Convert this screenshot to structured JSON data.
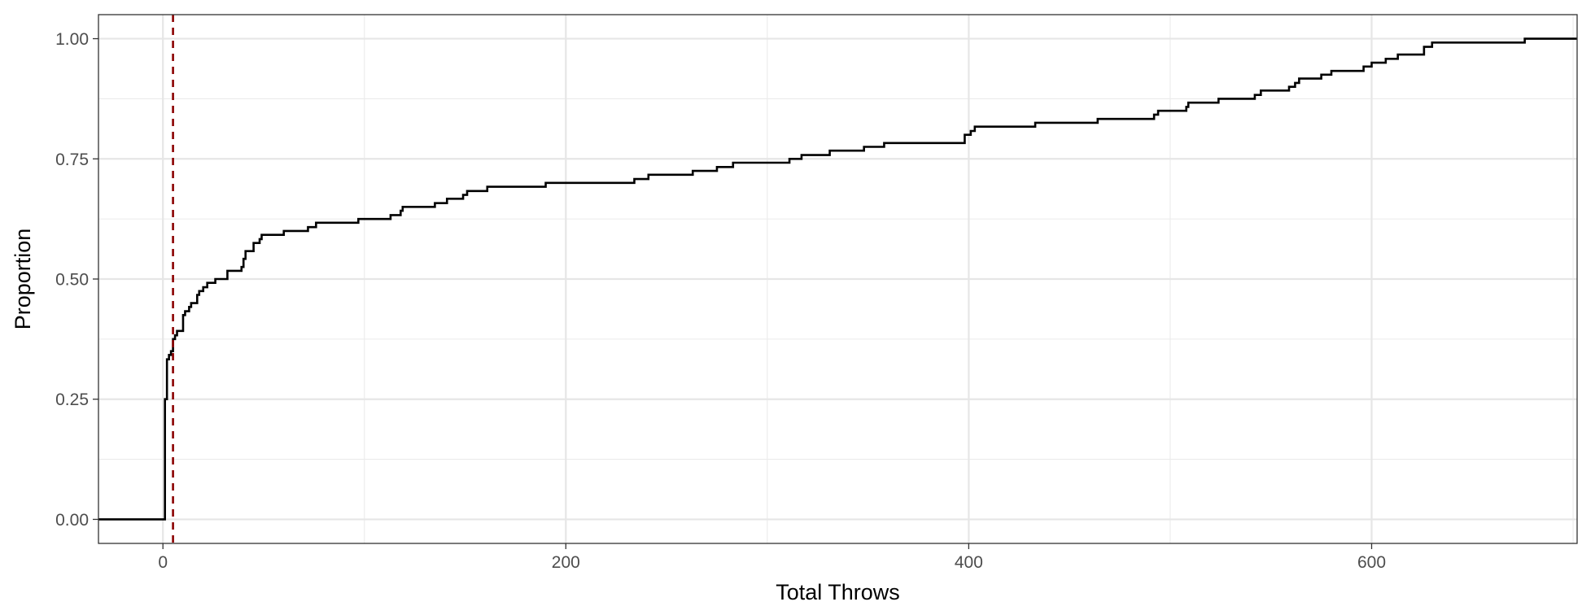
{
  "chart_data": {
    "type": "line",
    "subtype": "ecdf-step",
    "title": "",
    "xlabel": "Total Throws",
    "ylabel": "Proportion",
    "xlim": [
      -32,
      702
    ],
    "ylim": [
      -0.05,
      1.05
    ],
    "x_ticks": [
      0,
      200,
      400,
      600
    ],
    "x_tick_labels": [
      "0",
      "200",
      "400",
      "600"
    ],
    "y_ticks": [
      0,
      0.25,
      0.5,
      0.75,
      1.0
    ],
    "y_tick_labels": [
      "0.00",
      "0.25",
      "0.50",
      "0.75",
      "1.00"
    ],
    "grid": true,
    "legend": "none",
    "reference_line": {
      "x": 5,
      "style": "dashed",
      "color": "#8b0000"
    },
    "series": [
      {
        "color": "#000000",
        "points": [
          [
            -32,
            0.0
          ],
          [
            1,
            0.0
          ],
          [
            1,
            0.25
          ],
          [
            2,
            0.25
          ],
          [
            2,
            0.333
          ],
          [
            3,
            0.333
          ],
          [
            3,
            0.342
          ],
          [
            4,
            0.342
          ],
          [
            4,
            0.35
          ],
          [
            5,
            0.35
          ],
          [
            5,
            0.375
          ],
          [
            6,
            0.375
          ],
          [
            6,
            0.383
          ],
          [
            7,
            0.383
          ],
          [
            7,
            0.392
          ],
          [
            10,
            0.392
          ],
          [
            10,
            0.425
          ],
          [
            11,
            0.425
          ],
          [
            11,
            0.433
          ],
          [
            13,
            0.433
          ],
          [
            13,
            0.442
          ],
          [
            14,
            0.442
          ],
          [
            14,
            0.45
          ],
          [
            17,
            0.45
          ],
          [
            17,
            0.467
          ],
          [
            18,
            0.467
          ],
          [
            18,
            0.475
          ],
          [
            20,
            0.475
          ],
          [
            20,
            0.483
          ],
          [
            22,
            0.483
          ],
          [
            22,
            0.492
          ],
          [
            26,
            0.492
          ],
          [
            26,
            0.5
          ],
          [
            32,
            0.5
          ],
          [
            32,
            0.517
          ],
          [
            39,
            0.517
          ],
          [
            39,
            0.525
          ],
          [
            40,
            0.525
          ],
          [
            40,
            0.542
          ],
          [
            41,
            0.542
          ],
          [
            41,
            0.558
          ],
          [
            45,
            0.558
          ],
          [
            45,
            0.575
          ],
          [
            48,
            0.575
          ],
          [
            48,
            0.583
          ],
          [
            49,
            0.583
          ],
          [
            49,
            0.592
          ],
          [
            60,
            0.592
          ],
          [
            60,
            0.6
          ],
          [
            72,
            0.6
          ],
          [
            72,
            0.608
          ],
          [
            76,
            0.608
          ],
          [
            76,
            0.617
          ],
          [
            97,
            0.617
          ],
          [
            97,
            0.625
          ],
          [
            113,
            0.625
          ],
          [
            113,
            0.633
          ],
          [
            118,
            0.633
          ],
          [
            118,
            0.642
          ],
          [
            119,
            0.642
          ],
          [
            119,
            0.65
          ],
          [
            135,
            0.65
          ],
          [
            135,
            0.658
          ],
          [
            141,
            0.658
          ],
          [
            141,
            0.667
          ],
          [
            149,
            0.667
          ],
          [
            149,
            0.675
          ],
          [
            151,
            0.675
          ],
          [
            151,
            0.683
          ],
          [
            161,
            0.683
          ],
          [
            161,
            0.692
          ],
          [
            190,
            0.692
          ],
          [
            190,
            0.7
          ],
          [
            234,
            0.7
          ],
          [
            234,
            0.708
          ],
          [
            241,
            0.708
          ],
          [
            241,
            0.717
          ],
          [
            263,
            0.717
          ],
          [
            263,
            0.725
          ],
          [
            275,
            0.725
          ],
          [
            275,
            0.733
          ],
          [
            283,
            0.733
          ],
          [
            283,
            0.742
          ],
          [
            311,
            0.742
          ],
          [
            311,
            0.75
          ],
          [
            317,
            0.75
          ],
          [
            317,
            0.758
          ],
          [
            331,
            0.758
          ],
          [
            331,
            0.767
          ],
          [
            348,
            0.767
          ],
          [
            348,
            0.775
          ],
          [
            358,
            0.775
          ],
          [
            358,
            0.783
          ],
          [
            398,
            0.783
          ],
          [
            398,
            0.8
          ],
          [
            401,
            0.8
          ],
          [
            401,
            0.808
          ],
          [
            403,
            0.808
          ],
          [
            403,
            0.817
          ],
          [
            433,
            0.817
          ],
          [
            433,
            0.825
          ],
          [
            464,
            0.825
          ],
          [
            464,
            0.833
          ],
          [
            492,
            0.833
          ],
          [
            492,
            0.842
          ],
          [
            494,
            0.842
          ],
          [
            494,
            0.85
          ],
          [
            508,
            0.85
          ],
          [
            508,
            0.858
          ],
          [
            509,
            0.858
          ],
          [
            509,
            0.867
          ],
          [
            524,
            0.867
          ],
          [
            524,
            0.875
          ],
          [
            542,
            0.875
          ],
          [
            542,
            0.883
          ],
          [
            545,
            0.883
          ],
          [
            545,
            0.892
          ],
          [
            559,
            0.892
          ],
          [
            559,
            0.9
          ],
          [
            562,
            0.9
          ],
          [
            562,
            0.908
          ],
          [
            564,
            0.908
          ],
          [
            564,
            0.917
          ],
          [
            575,
            0.917
          ],
          [
            575,
            0.925
          ],
          [
            580,
            0.925
          ],
          [
            580,
            0.933
          ],
          [
            596,
            0.933
          ],
          [
            596,
            0.942
          ],
          [
            600,
            0.942
          ],
          [
            600,
            0.95
          ],
          [
            607,
            0.95
          ],
          [
            607,
            0.958
          ],
          [
            613,
            0.958
          ],
          [
            613,
            0.967
          ],
          [
            626,
            0.967
          ],
          [
            626,
            0.983
          ],
          [
            630,
            0.983
          ],
          [
            630,
            0.992
          ],
          [
            676,
            0.992
          ],
          [
            676,
            1.0
          ],
          [
            702,
            1.0
          ]
        ]
      }
    ]
  }
}
